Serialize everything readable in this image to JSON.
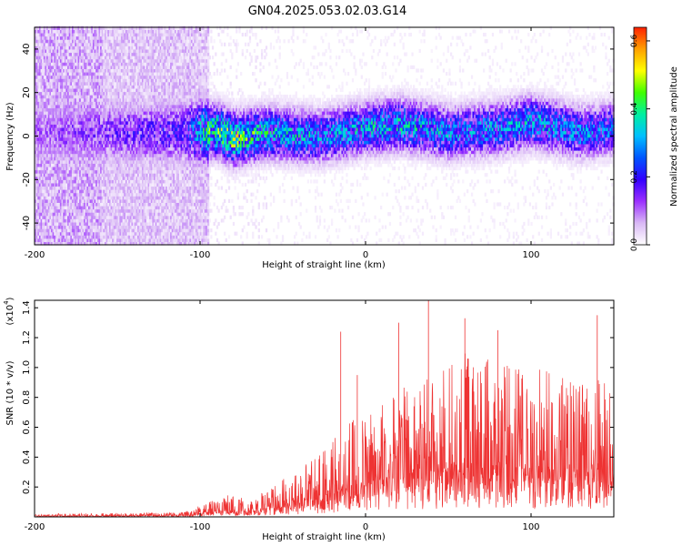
{
  "title": "GN04.2025.053.02.03.G14",
  "colors": {
    "snr_line": "#ee3333",
    "colormap": [
      "#ffffff",
      "#d9b8f5",
      "#9b30ff",
      "#3300ff",
      "#0055ff",
      "#00c0ff",
      "#00f0a0",
      "#40ff00",
      "#ffff00",
      "#ffa000",
      "#ff2000"
    ]
  },
  "chart_data": [
    {
      "type": "heatmap",
      "xlabel": "Height of straight line (km)",
      "ylabel": "Frequency (Hz)",
      "xlim": [
        -200,
        150
      ],
      "ylim": [
        -50,
        50
      ],
      "x_ticks": [
        -200,
        -100,
        0,
        100
      ],
      "y_ticks": [
        -40,
        -20,
        0,
        20,
        40
      ],
      "colorbar": {
        "label": "Normalized spectral amplitude",
        "range": [
          0.0,
          0.64
        ],
        "ticks": [
          "0.0",
          "0.2",
          "0.4",
          "0.6"
        ]
      },
      "ridge": {
        "center_hz": [
          [
            -165,
            1
          ],
          [
            -120,
            1
          ],
          [
            -90,
            2
          ],
          [
            -80,
            -2
          ],
          [
            -60,
            1
          ],
          [
            -30,
            -1
          ],
          [
            0,
            3
          ],
          [
            20,
            5
          ],
          [
            50,
            1
          ],
          [
            80,
            3
          ],
          [
            100,
            6
          ],
          [
            130,
            1
          ],
          [
            150,
            3
          ]
        ],
        "peak_amplitude_by_height": [
          [
            -200,
            0.12
          ],
          [
            -110,
            0.2
          ],
          [
            -95,
            0.42
          ],
          [
            -80,
            0.48
          ],
          [
            -60,
            0.36
          ],
          [
            -20,
            0.32
          ],
          [
            0,
            0.34
          ],
          [
            20,
            0.36
          ],
          [
            60,
            0.3
          ],
          [
            100,
            0.34
          ],
          [
            150,
            0.28
          ]
        ]
      }
    },
    {
      "type": "line",
      "xlabel": "Height of straight line (km)",
      "ylabel": "SNR (10 * v/v)",
      "scale_note": "(x10",
      "scale_exp": "4",
      "xlim": [
        -200,
        150
      ],
      "ylim": [
        0,
        1.45
      ],
      "x_ticks": [
        -200,
        -100,
        0,
        100
      ],
      "y_ticks": [
        "0.2",
        "0.4",
        "0.6",
        "0.8",
        "1.0",
        "1.2",
        "1.4"
      ],
      "series": [
        {
          "envelope": [
            [
              -200,
              0.02
            ],
            [
              -110,
              0.03
            ],
            [
              -100,
              0.08
            ],
            [
              -85,
              0.15
            ],
            [
              -70,
              0.12
            ],
            [
              -60,
              0.2
            ],
            [
              -45,
              0.3
            ],
            [
              -25,
              0.45
            ],
            [
              -15,
              0.6
            ],
            [
              0,
              0.7
            ],
            [
              20,
              0.85
            ],
            [
              40,
              1.0
            ],
            [
              60,
              1.1
            ],
            [
              80,
              1.05
            ],
            [
              100,
              1.0
            ],
            [
              120,
              0.95
            ],
            [
              150,
              0.9
            ]
          ],
          "peaks": [
            [
              -15,
              1.24
            ],
            [
              -5,
              0.95
            ],
            [
              20,
              1.3
            ],
            [
              38,
              1.45
            ],
            [
              60,
              1.33
            ],
            [
              80,
              1.25
            ],
            [
              140,
              1.35
            ],
            [
              150,
              1.0
            ]
          ]
        }
      ]
    }
  ]
}
